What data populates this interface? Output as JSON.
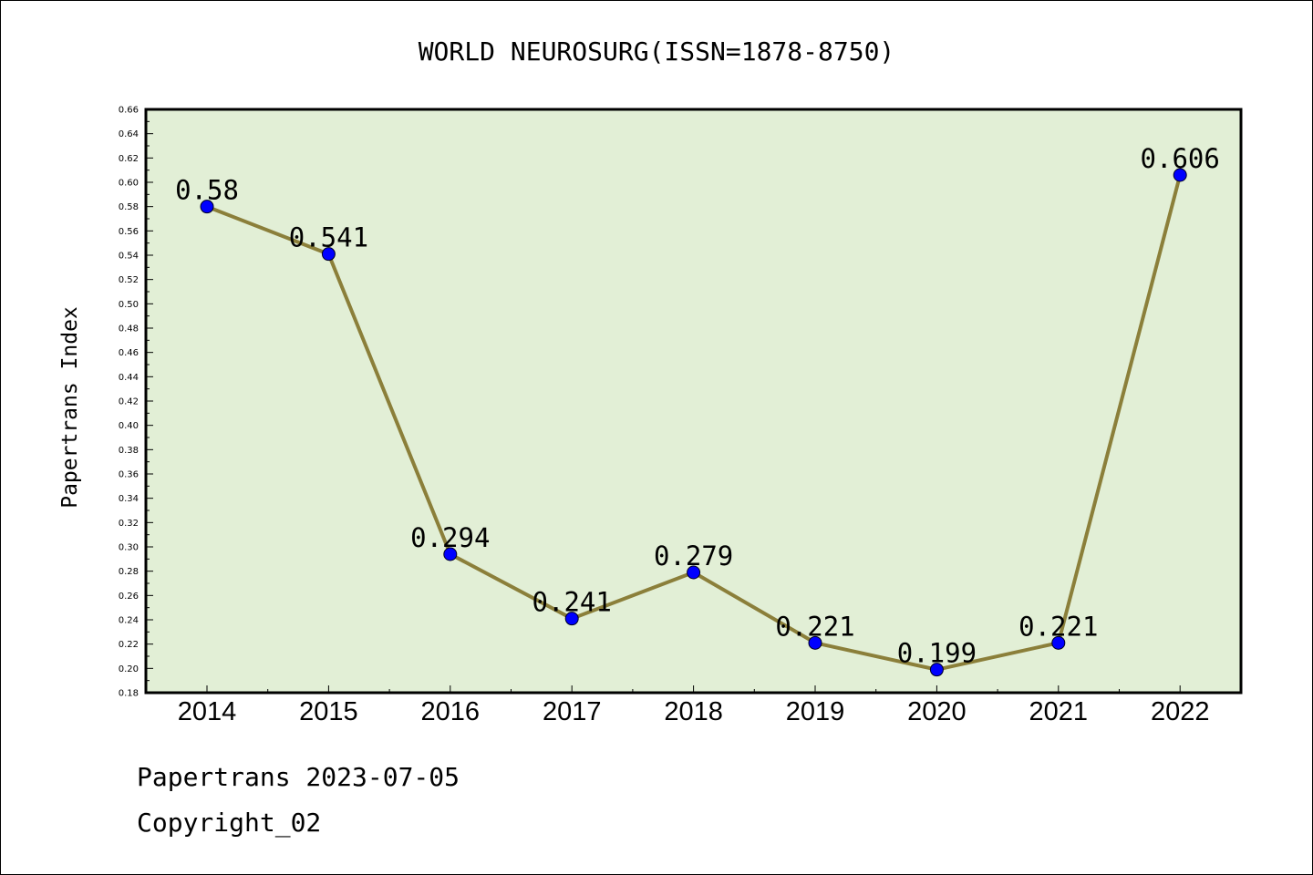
{
  "chart_data": {
    "type": "line",
    "title": "WORLD NEUROSURG(ISSN=1878-8750)",
    "xlabel": "",
    "ylabel": "Papertrans Index",
    "categories": [
      "2014",
      "2015",
      "2016",
      "2017",
      "2018",
      "2019",
      "2020",
      "2021",
      "2022"
    ],
    "series": [
      {
        "values": [
          0.58,
          0.541,
          0.294,
          0.241,
          0.279,
          0.221,
          0.199,
          0.221,
          0.606
        ],
        "labels": [
          "0.58",
          "0.541",
          "0.294",
          "0.241",
          "0.279",
          "0.221",
          "0.199",
          "0.221",
          "0.606"
        ]
      }
    ],
    "ylim": [
      0.18,
      0.66
    ],
    "ytick_step": 0.02,
    "grid": false,
    "legend": "none",
    "colors": {
      "plot_background": "#e2efd6",
      "line": "#8b7f3a",
      "marker": "#0000ff"
    }
  },
  "footer": {
    "line1": "Papertrans 2023-07-05",
    "line2": "Copyright_02"
  }
}
